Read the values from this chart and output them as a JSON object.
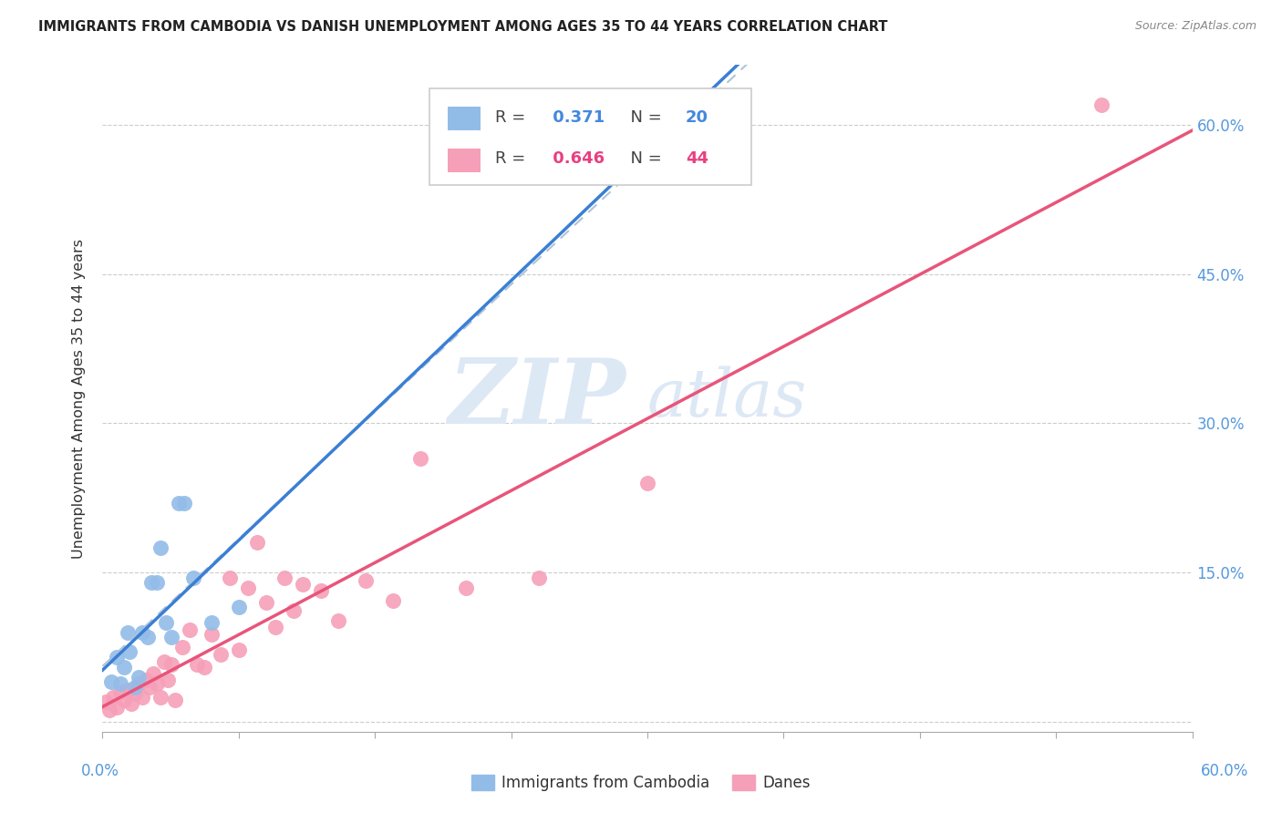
{
  "title": "IMMIGRANTS FROM CAMBODIA VS DANISH UNEMPLOYMENT AMONG AGES 35 TO 44 YEARS CORRELATION CHART",
  "source": "Source: ZipAtlas.com",
  "ylabel": "Unemployment Among Ages 35 to 44 years",
  "xlim": [
    0.0,
    0.6
  ],
  "ylim": [
    -0.01,
    0.66
  ],
  "yticks": [
    0.0,
    0.15,
    0.3,
    0.45,
    0.6
  ],
  "ytick_labels": [
    "",
    "15.0%",
    "30.0%",
    "45.0%",
    "60.0%"
  ],
  "xticks": [
    0.0,
    0.075,
    0.15,
    0.225,
    0.3,
    0.375,
    0.45,
    0.525,
    0.6
  ],
  "r_cambodia": 0.371,
  "n_cambodia": 20,
  "r_danes": 0.646,
  "n_danes": 44,
  "color_cambodia": "#92bce8",
  "color_danes": "#f5a0b8",
  "color_cambodia_line": "#3a7fd4",
  "color_danes_line": "#e8557a",
  "color_gray_dash": "#b0c4d8",
  "watermark_zip": "ZIP",
  "watermark_atlas": "atlas",
  "watermark_color": "#dde8f5",
  "scatter_cambodia_x": [
    0.005,
    0.008,
    0.01,
    0.012,
    0.014,
    0.015,
    0.018,
    0.02,
    0.022,
    0.025,
    0.027,
    0.03,
    0.032,
    0.035,
    0.038,
    0.042,
    0.045,
    0.05,
    0.06,
    0.075
  ],
  "scatter_cambodia_y": [
    0.04,
    0.065,
    0.038,
    0.055,
    0.09,
    0.07,
    0.035,
    0.045,
    0.09,
    0.085,
    0.14,
    0.14,
    0.175,
    0.1,
    0.085,
    0.22,
    0.22,
    0.145,
    0.1,
    0.115
  ],
  "scatter_danes_x": [
    0.002,
    0.004,
    0.006,
    0.008,
    0.01,
    0.012,
    0.014,
    0.016,
    0.018,
    0.02,
    0.022,
    0.024,
    0.026,
    0.028,
    0.03,
    0.032,
    0.034,
    0.036,
    0.038,
    0.04,
    0.044,
    0.048,
    0.052,
    0.056,
    0.06,
    0.065,
    0.07,
    0.075,
    0.08,
    0.085,
    0.09,
    0.095,
    0.1,
    0.105,
    0.11,
    0.12,
    0.13,
    0.145,
    0.16,
    0.175,
    0.2,
    0.24,
    0.3,
    0.55
  ],
  "scatter_danes_y": [
    0.02,
    0.012,
    0.025,
    0.015,
    0.03,
    0.022,
    0.032,
    0.018,
    0.028,
    0.038,
    0.025,
    0.042,
    0.035,
    0.048,
    0.038,
    0.025,
    0.06,
    0.042,
    0.058,
    0.022,
    0.075,
    0.092,
    0.058,
    0.055,
    0.088,
    0.068,
    0.145,
    0.072,
    0.135,
    0.18,
    0.12,
    0.095,
    0.145,
    0.112,
    0.138,
    0.132,
    0.102,
    0.142,
    0.122,
    0.265,
    0.135,
    0.145,
    0.24,
    0.62
  ]
}
